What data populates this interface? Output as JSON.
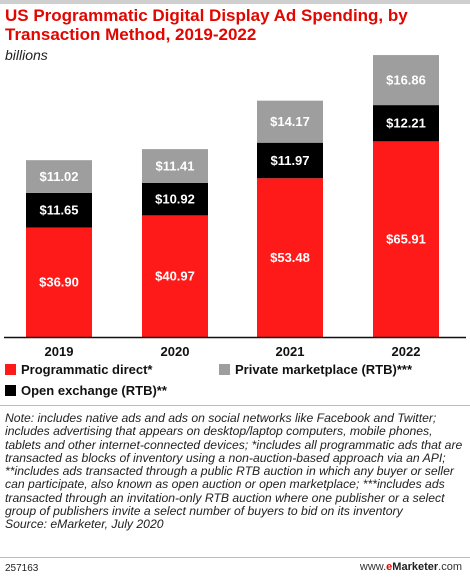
{
  "header": {
    "title": "US Programmatic Digital Display Ad Spending, by Transaction Method, 2019-2022",
    "subtitle": "billions"
  },
  "colors": {
    "title": "#e10600",
    "programmatic_direct": "#ff1a1a",
    "open_exchange": "#000000",
    "private_marketplace": "#9e9e9e",
    "baseline": "#111111"
  },
  "chart_data": {
    "type": "bar",
    "stacked": true,
    "categories": [
      "2019",
      "2020",
      "2021",
      "2022"
    ],
    "series": [
      {
        "name": "Programmatic direct*",
        "color": "#ff1a1a",
        "values": [
          36.9,
          40.97,
          53.48,
          65.91
        ],
        "labels": [
          "$36.90",
          "$40.97",
          "$53.48",
          "$65.91"
        ]
      },
      {
        "name": "Open exchange (RTB)**",
        "color": "#000000",
        "values": [
          11.65,
          10.92,
          11.97,
          12.21
        ],
        "labels": [
          "$11.65",
          "$10.92",
          "$11.97",
          "$12.21"
        ]
      },
      {
        "name": "Private marketplace (RTB)***",
        "color": "#9e9e9e",
        "values": [
          11.02,
          11.41,
          14.17,
          16.86
        ],
        "labels": [
          "$11.02",
          "$11.41",
          "$14.17",
          "$16.86"
        ]
      }
    ],
    "title": "US Programmatic Digital Display Ad Spending, by Transaction Method, 2019-2022",
    "ylabel": "billions",
    "ylim": [
      0,
      95
    ],
    "grid": false,
    "legend_position": "bottom"
  },
  "note": {
    "text": "Note: includes native ads and ads on social networks like Facebook and Twitter; includes advertising that appears on desktop/laptop computers, mobile phones, tablets and other internet-connected devices; *includes all programmatic ads that are transacted as blocks of inventory using a non-auction-based approach via an API; **includes ads transacted through a public RTB auction in which any buyer or seller can participate, also known as open auction or open marketplace; ***includes ads transacted through an invitation-only RTB auction where one publisher or a select group of publishers invite a select number of buyers to bid on its inventory",
    "source": "Source: eMarketer, July 2020"
  },
  "footer": {
    "chart_id": "257163",
    "site_prefix": "www.",
    "site_e": "e",
    "site_marketer": "Marketer",
    "site_suffix": ".com"
  }
}
